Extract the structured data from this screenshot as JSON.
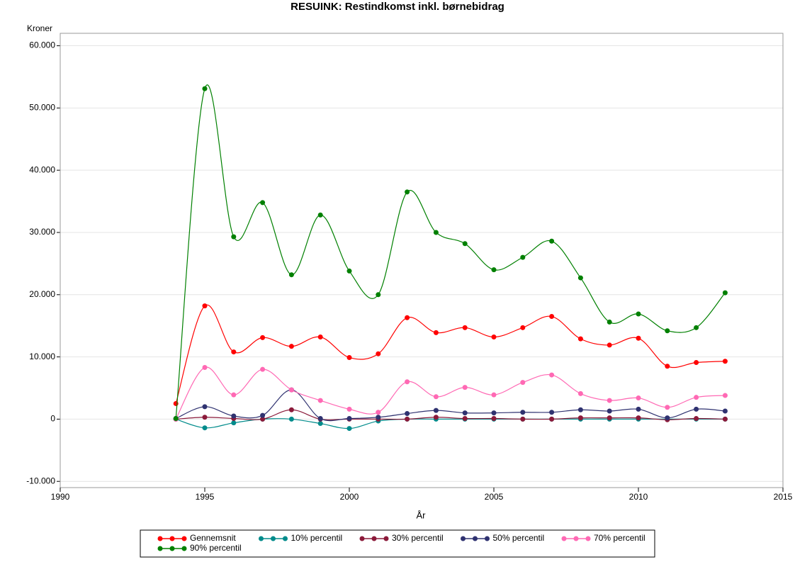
{
  "chart_data": {
    "type": "line",
    "title": "RESUINK:  Restindkomst inkl. børnebidrag",
    "y_label": "Kroner",
    "x_label": "År",
    "x": [
      1994,
      1995,
      1996,
      1997,
      1998,
      1999,
      2000,
      2001,
      2002,
      2003,
      2004,
      2005,
      2006,
      2007,
      2008,
      2009,
      2010,
      2011,
      2012,
      2013
    ],
    "series": [
      {
        "name": "Gennemsnit",
        "color": "#ff0000",
        "values": [
          2500,
          18200,
          10800,
          13100,
          11700,
          13200,
          9900,
          10500,
          16300,
          13900,
          14700,
          13200,
          14700,
          16500,
          12900,
          11900,
          13000,
          8500,
          9100,
          9300
        ]
      },
      {
        "name": "10% percentil",
        "color": "#008b8b",
        "values": [
          0,
          -1400,
          -600,
          0,
          0,
          -700,
          -1500,
          -300,
          0,
          0,
          0,
          0,
          0,
          0,
          0,
          0,
          0,
          0,
          0,
          0
        ]
      },
      {
        "name": "30% percentil",
        "color": "#8b1a3a",
        "values": [
          0,
          300,
          100,
          0,
          1500,
          0,
          0,
          0,
          0,
          300,
          100,
          100,
          0,
          0,
          200,
          200,
          200,
          -100,
          100,
          0
        ]
      },
      {
        "name": "50% percentil",
        "color": "#2f3270",
        "values": [
          100,
          2000,
          500,
          600,
          4700,
          100,
          100,
          300,
          900,
          1400,
          1000,
          1000,
          1100,
          1100,
          1500,
          1300,
          1600,
          200,
          1600,
          1300
        ]
      },
      {
        "name": "70% percentil",
        "color": "#ff69b4",
        "values": [
          0,
          8300,
          3900,
          8000,
          4700,
          3000,
          1600,
          1100,
          6000,
          3600,
          5100,
          3900,
          5900,
          7100,
          4100,
          3000,
          3400,
          1900,
          3500,
          3800
        ]
      },
      {
        "name": "90% percentil",
        "color": "#008000",
        "values": [
          100,
          53100,
          29300,
          34800,
          23200,
          32800,
          23800,
          20000,
          36500,
          30000,
          28200,
          24000,
          26000,
          28600,
          22700,
          15600,
          16900,
          14200,
          14700,
          20300
        ]
      }
    ],
    "xlim": [
      1990,
      2015
    ],
    "xticks": [
      1990,
      1995,
      2000,
      2005,
      2010,
      2015
    ],
    "ylim": [
      -11000,
      62000
    ],
    "yticks": [
      {
        "value": -10000,
        "label": "-10.000"
      },
      0,
      {
        "value": 10000,
        "label": "10.000"
      },
      {
        "value": 20000,
        "label": "20.000"
      },
      {
        "value": 30000,
        "label": "30.000"
      },
      {
        "value": 40000,
        "label": "40.000"
      },
      {
        "value": 50000,
        "label": "50.000"
      },
      {
        "value": 60000,
        "label": "60.000"
      }
    ],
    "grid": true
  }
}
